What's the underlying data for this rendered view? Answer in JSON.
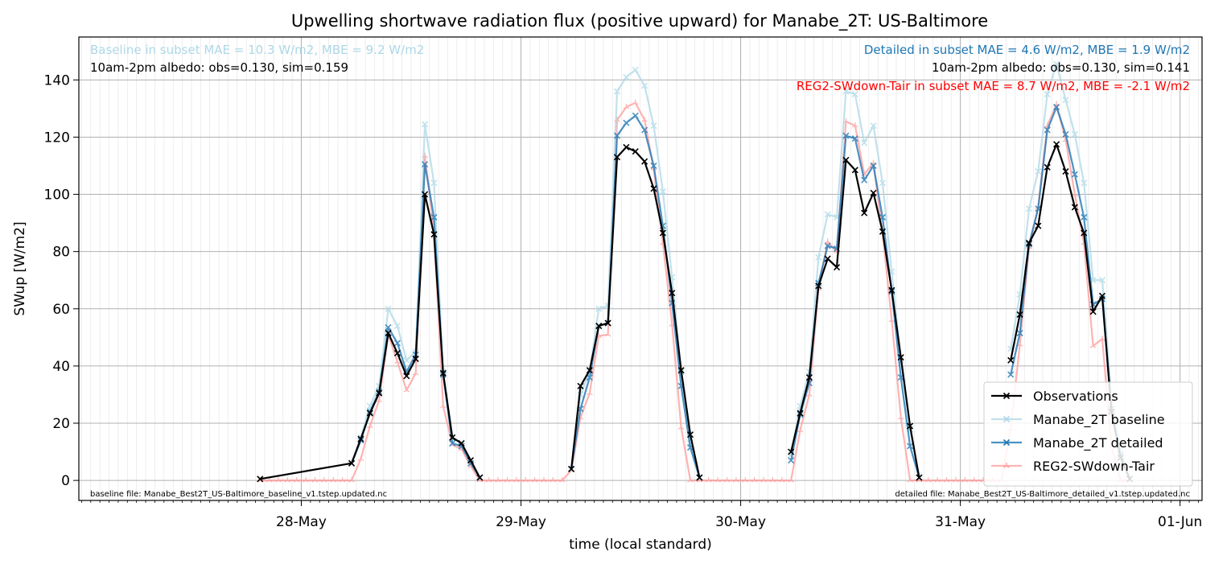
{
  "chart_data": {
    "type": "line",
    "title": "Upwelling shortwave radiation flux (positive upward) for Manabe_2T: US-Baltimore",
    "xlabel": "time (local standard)",
    "ylabel": "SWup [W/m2]",
    "ylim": [
      -7,
      155
    ],
    "xlim_hours": [
      -24.3,
      98.4
    ],
    "x_tick_labels": [
      {
        "hour": 0,
        "label": "28-May"
      },
      {
        "hour": 24,
        "label": "29-May"
      },
      {
        "hour": 48,
        "label": "30-May"
      },
      {
        "hour": 72,
        "label": "31-May"
      },
      {
        "hour": 96,
        "label": "01-Jun"
      }
    ],
    "y_ticks": [
      0,
      20,
      40,
      60,
      80,
      100,
      120,
      140
    ],
    "grid": true,
    "legend_position": "lower-right",
    "annotations": {
      "baseline_stats": "Baseline in subset MAE = 10.3 W/m2, MBE = 9.2 W/m2",
      "baseline_albedo": "10am-2pm albedo: obs=0.130, sim=0.159",
      "detailed_stats": "Detailed in subset MAE = 4.6 W/m2, MBE = 1.9 W/m2",
      "detailed_albedo": "10am-2pm albedo: obs=0.130, sim=0.141",
      "reg2_stats": "REG2-SWdown-Tair in subset MAE = 8.7 W/m2, MBE = -2.1 W/m2",
      "baseline_file": "baseline file: Manabe_Best2T_US-Baltimore_baseline_v1.tstep.updated.nc",
      "detailed_file": "detailed file: Manabe_Best2T_US-Baltimore_detailed_v1.tstep.updated.nc"
    },
    "series": [
      {
        "name": "Observations",
        "color": "#000000",
        "marker": "x",
        "points": [
          [
            -4.5,
            0.5
          ],
          [
            5.5,
            6
          ],
          [
            6.5,
            14.5
          ],
          [
            7.5,
            23.5
          ],
          [
            8.5,
            30.5
          ],
          [
            9.5,
            51.5
          ],
          [
            10.5,
            44.5
          ],
          [
            11.5,
            36.5
          ],
          [
            12.5,
            42.5
          ],
          [
            13.5,
            100
          ],
          [
            14.5,
            86
          ],
          [
            15.5,
            37.5
          ],
          [
            16.5,
            15
          ],
          [
            17.5,
            13
          ],
          [
            18.5,
            7
          ],
          [
            19.5,
            1
          ],
          null,
          [
            29.5,
            4
          ],
          [
            30.5,
            33
          ],
          [
            31.5,
            38.5
          ],
          [
            32.5,
            54
          ],
          [
            33.5,
            55
          ],
          [
            34.5,
            113
          ],
          [
            35.5,
            116.5
          ],
          [
            36.5,
            115
          ],
          [
            37.5,
            111.5
          ],
          [
            38.5,
            102
          ],
          [
            39.5,
            86.5
          ],
          [
            40.5,
            65.5
          ],
          [
            41.5,
            38.5
          ],
          [
            42.5,
            16
          ],
          [
            43.5,
            1
          ],
          null,
          [
            53.5,
            10
          ],
          [
            54.5,
            23.5
          ],
          [
            55.5,
            36
          ],
          [
            56.5,
            68
          ],
          [
            57.5,
            77.5
          ],
          [
            58.5,
            74.5
          ],
          [
            59.5,
            112
          ],
          [
            60.5,
            108.5
          ],
          [
            61.5,
            93.5
          ],
          [
            62.5,
            100.5
          ],
          [
            63.5,
            87
          ],
          [
            64.5,
            66.5
          ],
          [
            65.5,
            43
          ],
          [
            66.5,
            19
          ],
          [
            67.5,
            1
          ],
          null,
          [
            77.5,
            42
          ],
          [
            78.5,
            58
          ],
          [
            79.5,
            83
          ],
          [
            80.5,
            89
          ],
          [
            81.5,
            109.5
          ],
          [
            82.5,
            117.5
          ],
          [
            83.5,
            108
          ],
          [
            84.5,
            95.5
          ],
          [
            85.5,
            86.5
          ],
          [
            86.5,
            59
          ],
          [
            87.5,
            64.5
          ],
          [
            88.5,
            24
          ],
          [
            89.5,
            8
          ],
          [
            90.5,
            0.5
          ]
        ]
      },
      {
        "name": "Manabe_2T baseline",
        "color": "#add8e6",
        "marker": "x",
        "points": [
          [
            5.5,
            6
          ],
          [
            6.5,
            15
          ],
          [
            7.5,
            26
          ],
          [
            8.5,
            33
          ],
          [
            9.5,
            60
          ],
          [
            10.5,
            54
          ],
          [
            11.5,
            42
          ],
          [
            12.5,
            45
          ],
          [
            13.5,
            124.5
          ],
          [
            14.5,
            104
          ],
          [
            15.5,
            38
          ],
          [
            16.5,
            15
          ],
          [
            17.5,
            13
          ],
          [
            18.5,
            7
          ],
          [
            19.5,
            1
          ],
          null,
          [
            29.5,
            4
          ],
          [
            30.5,
            30
          ],
          [
            31.5,
            38
          ],
          [
            32.5,
            60
          ],
          [
            33.5,
            61
          ],
          [
            34.5,
            136
          ],
          [
            35.5,
            141
          ],
          [
            36.5,
            143.5
          ],
          [
            37.5,
            138
          ],
          [
            38.5,
            124
          ],
          [
            39.5,
            101
          ],
          [
            40.5,
            71
          ],
          [
            41.5,
            38
          ],
          [
            42.5,
            13
          ],
          [
            43.5,
            1
          ],
          null,
          [
            53.5,
            9
          ],
          [
            54.5,
            26
          ],
          [
            55.5,
            38
          ],
          [
            56.5,
            78
          ],
          [
            57.5,
            93
          ],
          [
            58.5,
            92
          ],
          [
            59.5,
            136
          ],
          [
            60.5,
            135
          ],
          [
            61.5,
            118
          ],
          [
            62.5,
            124
          ],
          [
            63.5,
            104
          ],
          [
            64.5,
            73
          ],
          [
            65.5,
            42
          ],
          [
            66.5,
            18
          ],
          [
            67.5,
            1
          ],
          null,
          [
            77.5,
            46
          ],
          [
            78.5,
            65
          ],
          [
            79.5,
            95
          ],
          [
            80.5,
            108
          ],
          [
            81.5,
            135
          ],
          [
            82.5,
            145.5
          ],
          [
            83.5,
            133
          ],
          [
            84.5,
            121
          ],
          [
            85.5,
            104
          ],
          [
            86.5,
            70
          ],
          [
            87.5,
            70
          ],
          [
            88.5,
            29
          ],
          [
            89.5,
            11
          ],
          [
            90.5,
            0.5
          ]
        ]
      },
      {
        "name": "Manabe_2T detailed",
        "color": "#1f77b4",
        "marker": "x",
        "points": [
          [
            5.5,
            6
          ],
          [
            6.5,
            14
          ],
          [
            7.5,
            24
          ],
          [
            8.5,
            31
          ],
          [
            9.5,
            53.5
          ],
          [
            10.5,
            48
          ],
          [
            11.5,
            38
          ],
          [
            12.5,
            44
          ],
          [
            13.5,
            110.5
          ],
          [
            14.5,
            92
          ],
          [
            15.5,
            37
          ],
          [
            16.5,
            13
          ],
          [
            17.5,
            12
          ],
          [
            18.5,
            6
          ],
          [
            19.5,
            1
          ],
          null,
          [
            29.5,
            4
          ],
          [
            30.5,
            25
          ],
          [
            31.5,
            36
          ],
          [
            32.5,
            54
          ],
          [
            33.5,
            55
          ],
          [
            34.5,
            120.5
          ],
          [
            35.5,
            125
          ],
          [
            36.5,
            127.5
          ],
          [
            37.5,
            122.5
          ],
          [
            38.5,
            110
          ],
          [
            39.5,
            89
          ],
          [
            40.5,
            62
          ],
          [
            41.5,
            33
          ],
          [
            42.5,
            11.5
          ],
          [
            43.5,
            1
          ],
          null,
          [
            53.5,
            7
          ],
          [
            54.5,
            23
          ],
          [
            55.5,
            34
          ],
          [
            56.5,
            69
          ],
          [
            57.5,
            82
          ],
          [
            58.5,
            81
          ],
          [
            59.5,
            120.5
          ],
          [
            60.5,
            119.5
          ],
          [
            61.5,
            105
          ],
          [
            62.5,
            110
          ],
          [
            63.5,
            92
          ],
          [
            64.5,
            66
          ],
          [
            65.5,
            36
          ],
          [
            66.5,
            12
          ],
          [
            67.5,
            1
          ],
          null,
          [
            77.5,
            37
          ],
          [
            78.5,
            51.5
          ],
          [
            79.5,
            82.5
          ],
          [
            80.5,
            95
          ],
          [
            81.5,
            122.5
          ],
          [
            82.5,
            130.5
          ],
          [
            83.5,
            121
          ],
          [
            84.5,
            107
          ],
          [
            85.5,
            92
          ],
          [
            86.5,
            61.5
          ],
          [
            87.5,
            63.5
          ],
          [
            88.5,
            25
          ],
          [
            89.5,
            9
          ],
          [
            90.5,
            0.5
          ]
        ]
      },
      {
        "name": "REG2-SWdown-Tair",
        "color": "#ff9a9a",
        "marker": "tri",
        "points": [
          [
            -4.5,
            0
          ],
          [
            -3.5,
            0
          ],
          [
            -2.5,
            0
          ],
          [
            -1.5,
            0
          ],
          [
            -0.5,
            0
          ],
          [
            0.5,
            0
          ],
          [
            1.5,
            0
          ],
          [
            2.5,
            0
          ],
          [
            3.5,
            0
          ],
          [
            4.5,
            0
          ],
          [
            5.5,
            0
          ],
          [
            6.5,
            7.5
          ],
          [
            7.5,
            19
          ],
          [
            8.5,
            28
          ],
          [
            9.5,
            51
          ],
          [
            10.5,
            41.5
          ],
          [
            11.5,
            31.5
          ],
          [
            12.5,
            37.5
          ],
          [
            13.5,
            113.5
          ],
          [
            14.5,
            87
          ],
          [
            15.5,
            26
          ],
          [
            16.5,
            12.5
          ],
          [
            17.5,
            11
          ],
          [
            18.5,
            5
          ],
          [
            19.5,
            0
          ],
          [
            20.5,
            0
          ],
          [
            21.5,
            0
          ],
          [
            22.5,
            0
          ],
          [
            23.5,
            0
          ],
          [
            24.5,
            0
          ],
          [
            25.5,
            0
          ],
          [
            26.5,
            0
          ],
          [
            27.5,
            0
          ],
          [
            28.5,
            0
          ],
          [
            29.5,
            3.5
          ],
          [
            30.5,
            22
          ],
          [
            31.5,
            30.5
          ],
          [
            32.5,
            50.5
          ],
          [
            33.5,
            51
          ],
          [
            34.5,
            126
          ],
          [
            35.5,
            130.5
          ],
          [
            36.5,
            132
          ],
          [
            37.5,
            126
          ],
          [
            38.5,
            109
          ],
          [
            39.5,
            83
          ],
          [
            40.5,
            54.5
          ],
          [
            41.5,
            18.5
          ],
          [
            42.5,
            0
          ],
          [
            43.5,
            0
          ],
          [
            44.5,
            0
          ],
          [
            45.5,
            0
          ],
          [
            46.5,
            0
          ],
          [
            47.5,
            0
          ],
          [
            48.5,
            0
          ],
          [
            49.5,
            0
          ],
          [
            50.5,
            0
          ],
          [
            51.5,
            0
          ],
          [
            52.5,
            0
          ],
          [
            53.5,
            0
          ],
          [
            54.5,
            17.5
          ],
          [
            55.5,
            30
          ],
          [
            56.5,
            67
          ],
          [
            57.5,
            83.5
          ],
          [
            58.5,
            80
          ],
          [
            59.5,
            125.5
          ],
          [
            60.5,
            124
          ],
          [
            61.5,
            107
          ],
          [
            62.5,
            111
          ],
          [
            63.5,
            86.5
          ],
          [
            64.5,
            56
          ],
          [
            65.5,
            22
          ],
          [
            66.5,
            0
          ],
          [
            67.5,
            0
          ],
          [
            68.5,
            0
          ],
          [
            69.5,
            0
          ],
          [
            70.5,
            0
          ],
          [
            71.5,
            0
          ],
          [
            72.5,
            0
          ],
          [
            73.5,
            0
          ],
          [
            74.5,
            0
          ],
          [
            75.5,
            0
          ],
          [
            76.5,
            0
          ],
          [
            77.5,
            18
          ],
          [
            78.5,
            47.5
          ],
          [
            79.5,
            81.5
          ],
          [
            80.5,
            95.5
          ],
          [
            81.5,
            124
          ],
          [
            82.5,
            131.5
          ],
          [
            83.5,
            119
          ],
          [
            84.5,
            100
          ],
          [
            85.5,
            83
          ],
          [
            86.5,
            47
          ],
          [
            87.5,
            49.5
          ],
          [
            88.5,
            12
          ],
          [
            89.5,
            0
          ],
          [
            90.5,
            0
          ]
        ]
      }
    ]
  }
}
